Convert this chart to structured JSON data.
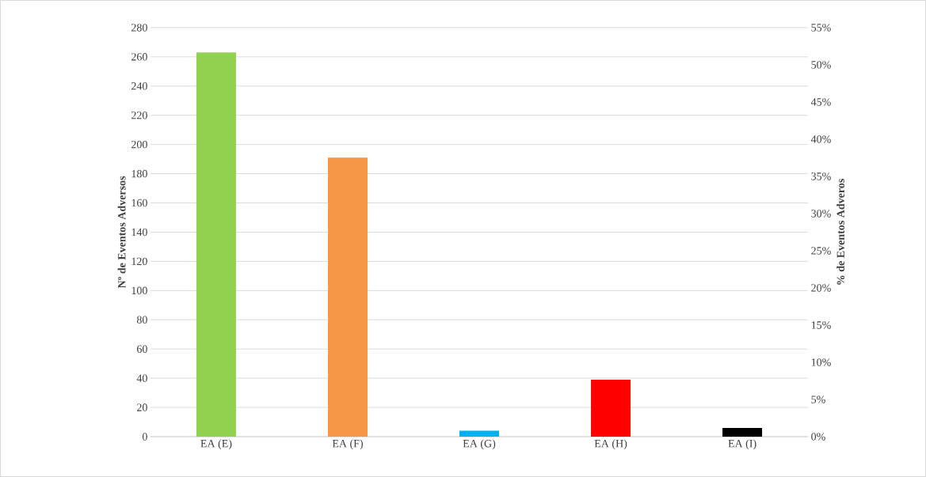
{
  "chart_data": {
    "type": "bar",
    "ylabel": "Nº de Eventos Adversos",
    "y2label": "% de Eventos Adveros",
    "categories": [
      "EA (E)",
      "EA (F)",
      "EA (G)",
      "EA (H)",
      "EA (I)"
    ],
    "values": [
      263,
      191,
      4,
      39,
      6
    ],
    "colors": [
      "#92d050",
      "#f79646",
      "#00b0f0",
      "#ff0000",
      "#000000"
    ],
    "ylim": [
      0,
      280
    ],
    "yticks": [
      0,
      20,
      40,
      60,
      80,
      100,
      120,
      140,
      160,
      180,
      200,
      220,
      240,
      260,
      280
    ],
    "y2lim": [
      0,
      55
    ],
    "y2ticks": [
      {
        "value": 0,
        "label": "0%"
      },
      {
        "value": 5,
        "label": "5%"
      },
      {
        "value": 10,
        "label": "10%"
      },
      {
        "value": 15,
        "label": "15%"
      },
      {
        "value": 20,
        "label": "20%"
      },
      {
        "value": 25,
        "label": "25%"
      },
      {
        "value": 30,
        "label": "30%"
      },
      {
        "value": 35,
        "label": "35%"
      },
      {
        "value": 40,
        "label": "40%"
      },
      {
        "value": 45,
        "label": "45%"
      },
      {
        "value": 50,
        "label": "50%"
      },
      {
        "value": 55,
        "label": "55%"
      }
    ],
    "grid": "y"
  }
}
